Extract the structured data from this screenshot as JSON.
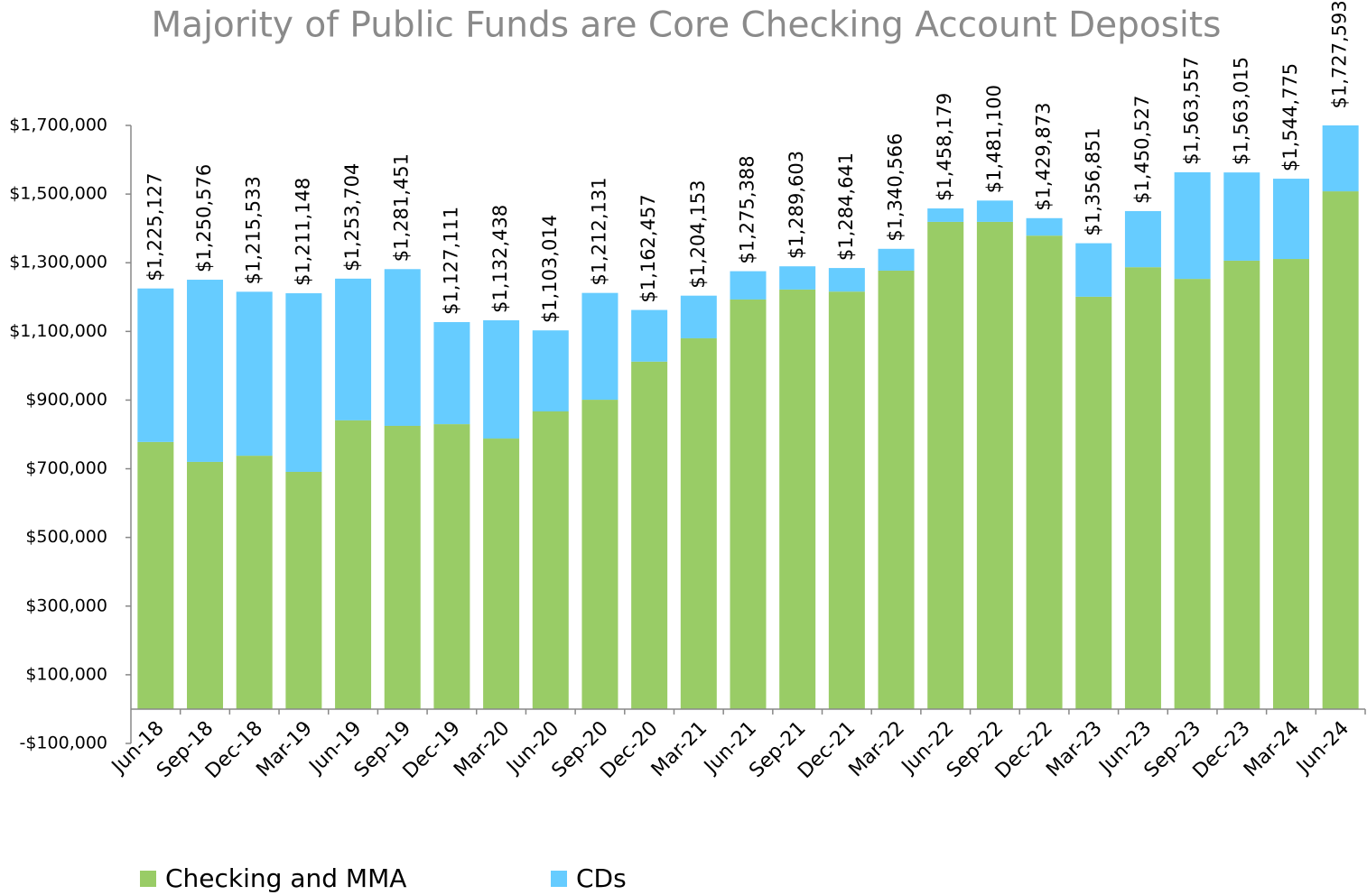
{
  "chart_data": {
    "type": "stacked_bar",
    "title": "Majority of Public Funds are Core Checking Account Deposits",
    "categories": [
      "Jun-18",
      "Sep-18",
      "Dec-18",
      "Mar-19",
      "Jun-19",
      "Sep-19",
      "Dec-19",
      "Mar-20",
      "Jun-20",
      "Sep-20",
      "Dec-20",
      "Mar-21",
      "Jun-21",
      "Sep-21",
      "Dec-21",
      "Mar-22",
      "Jun-22",
      "Sep-22",
      "Dec-22",
      "Mar-23",
      "Jun-23",
      "Sep-23",
      "Dec-23",
      "Mar-24",
      "Jun-24"
    ],
    "series": [
      {
        "name": "Checking and MMA",
        "color": "#99cc66",
        "values": [
          778000,
          720000,
          738000,
          691000,
          841000,
          825000,
          830000,
          788000,
          867000,
          901000,
          1012000,
          1080000,
          1193000,
          1222000,
          1216000,
          1277000,
          1419000,
          1419000,
          1379000,
          1201000,
          1287000,
          1253000,
          1306000,
          1311000,
          1508000
        ]
      },
      {
        "name": "CDs",
        "color": "#66ccff",
        "values": [
          447127,
          530576,
          477533,
          520148,
          412704,
          456451,
          297111,
          344438,
          236014,
          311131,
          150457,
          124153,
          82388,
          67603,
          68641,
          63566,
          39179,
          62100,
          50873,
          155851,
          163527,
          310557,
          257015,
          233775,
          219593
        ]
      }
    ],
    "totals": [
      1225127,
      1250576,
      1215533,
      1211148,
      1253704,
      1281451,
      1127111,
      1132438,
      1103014,
      1212131,
      1162457,
      1204153,
      1275388,
      1289603,
      1284641,
      1340566,
      1458179,
      1481100,
      1429873,
      1356851,
      1450527,
      1563557,
      1563015,
      1544775,
      1727593
    ],
    "total_labels": [
      "$1,225,127",
      "$1,250,576",
      "$1,215,533",
      "$1,211,148",
      "$1,253,704",
      "$1,281,451",
      "$1,127,111",
      "$1,132,438",
      "$1,103,014",
      "$1,212,131",
      "$1,162,457",
      "$1,204,153",
      "$1,275,388",
      "$1,289,603",
      "$1,284,641",
      "$1,340,566",
      "$1,458,179",
      "$1,481,100",
      "$1,429,873",
      "$1,356,851",
      "$1,450,527",
      "$1,563,557",
      "$1,563,015",
      "$1,544,775",
      "$1,727,593"
    ],
    "ylim": [
      -100000,
      1700000
    ],
    "yticks": [
      {
        "value": -100000,
        "label": "-$100,000"
      },
      {
        "value": 100000,
        "label": "$100,000"
      },
      {
        "value": 300000,
        "label": "$300,000"
      },
      {
        "value": 500000,
        "label": "$500,000"
      },
      {
        "value": 700000,
        "label": "$700,000"
      },
      {
        "value": 900000,
        "label": "$900,000"
      },
      {
        "value": 1100000,
        "label": "$1,100,000"
      },
      {
        "value": 1300000,
        "label": "$1,300,000"
      },
      {
        "value": 1500000,
        "label": "$1,500,000"
      },
      {
        "value": 1700000,
        "label": "$1,700,000"
      }
    ],
    "grid": false,
    "legend": "bottom"
  }
}
